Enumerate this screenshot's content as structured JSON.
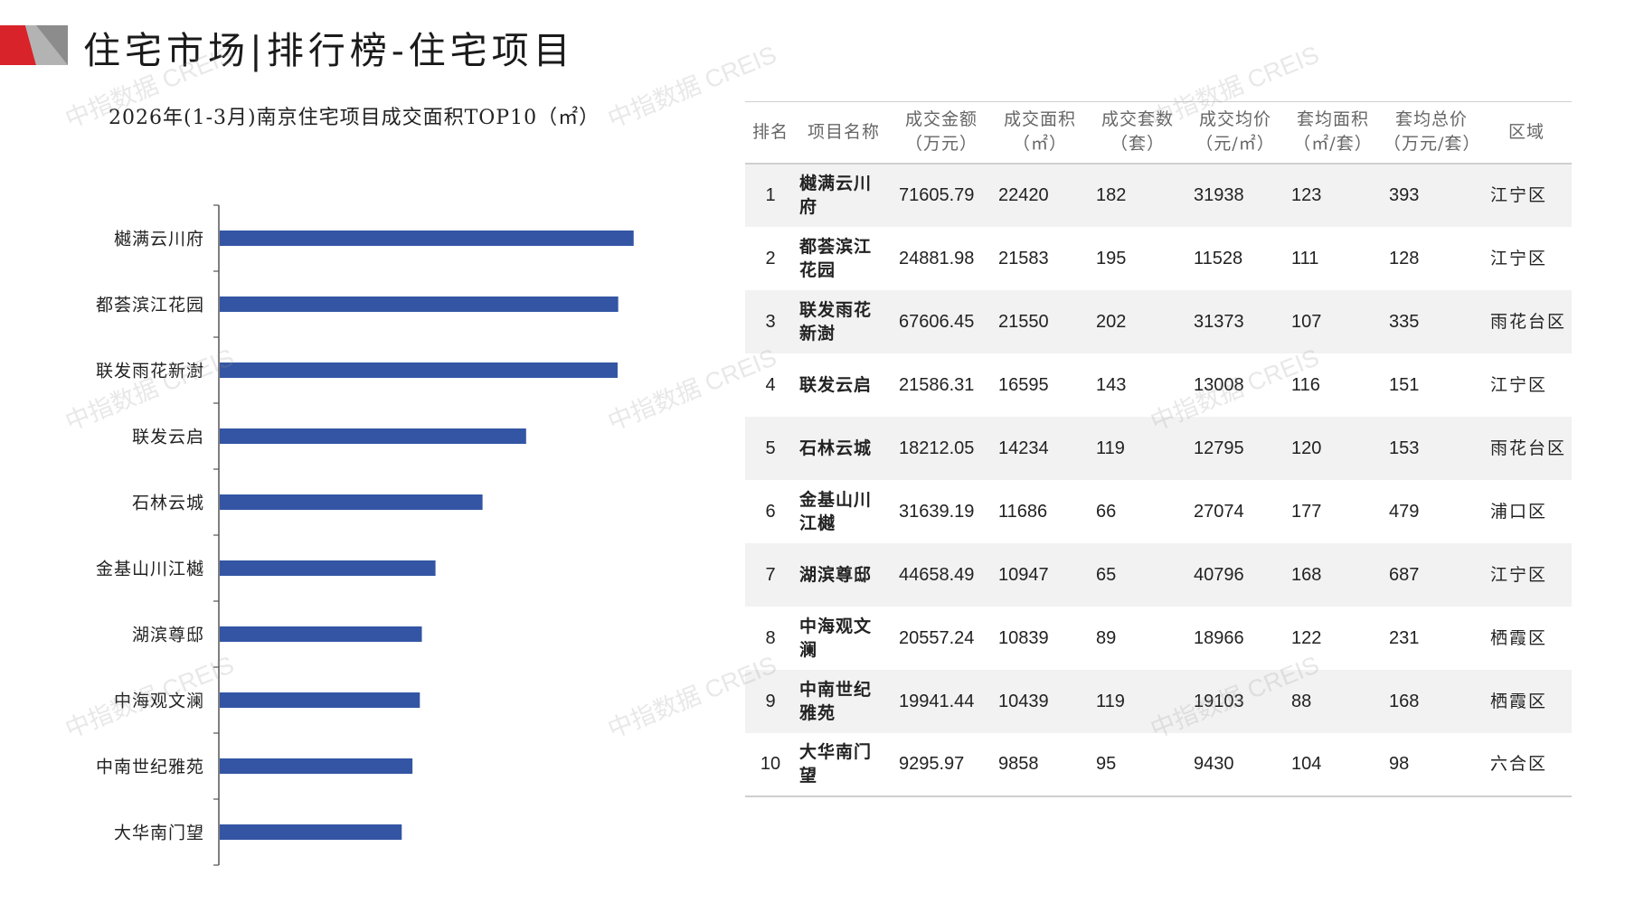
{
  "header": {
    "title": "住宅市场|排行榜-住宅项目"
  },
  "colors": {
    "bar": "#3355a4",
    "logo_red": "#d9232a",
    "logo_grey": "#b3b3b3",
    "row_stripe": "#f2f2f2"
  },
  "chart_data": {
    "type": "bar",
    "orientation": "horizontal",
    "title": "2026年(1-3月)南京住宅项目成交面积TOP10（㎡）",
    "categories": [
      "樾满云川府",
      "都荟滨江花园",
      "联发雨花新澍",
      "联发云启",
      "石林云城",
      "金基山川江樾",
      "湖滨尊邸",
      "中海观文澜",
      "中南世纪雅苑",
      "大华南门望"
    ],
    "values": [
      22420,
      21583,
      21550,
      16595,
      14234,
      11686,
      10947,
      10839,
      10439,
      9858
    ],
    "xlim": [
      0,
      24000
    ],
    "grid": false,
    "legend": "none"
  },
  "table": {
    "headers": [
      "排名",
      "项目名称",
      "成交金额（万元）",
      "成交面积（㎡）",
      "成交套数（套）",
      "成交均价（元/㎡）",
      "套均面积（㎡/套）",
      "套均总价（万元/套）",
      "区域"
    ],
    "rows": [
      [
        "1",
        "樾满云川府",
        "71605.79",
        "22420",
        "182",
        "31938",
        "123",
        "393",
        "江宁区"
      ],
      [
        "2",
        "都荟滨江花园",
        "24881.98",
        "21583",
        "195",
        "11528",
        "111",
        "128",
        "江宁区"
      ],
      [
        "3",
        "联发雨花新澍",
        "67606.45",
        "21550",
        "202",
        "31373",
        "107",
        "335",
        "雨花台区"
      ],
      [
        "4",
        "联发云启",
        "21586.31",
        "16595",
        "143",
        "13008",
        "116",
        "151",
        "江宁区"
      ],
      [
        "5",
        "石林云城",
        "18212.05",
        "14234",
        "119",
        "12795",
        "120",
        "153",
        "雨花台区"
      ],
      [
        "6",
        "金基山川江樾",
        "31639.19",
        "11686",
        "66",
        "27074",
        "177",
        "479",
        "浦口区"
      ],
      [
        "7",
        "湖滨尊邸",
        "44658.49",
        "10947",
        "65",
        "40796",
        "168",
        "687",
        "江宁区"
      ],
      [
        "8",
        "中海观文澜",
        "20557.24",
        "10839",
        "89",
        "18966",
        "122",
        "231",
        "栖霞区"
      ],
      [
        "9",
        "中南世纪雅苑",
        "19941.44",
        "10439",
        "119",
        "19103",
        "88",
        "168",
        "栖霞区"
      ],
      [
        "10",
        "大华南门望",
        "9295.97",
        "9858",
        "95",
        "9430",
        "104",
        "98",
        "六合区"
      ]
    ]
  },
  "watermark": "中指数据 CREIS"
}
